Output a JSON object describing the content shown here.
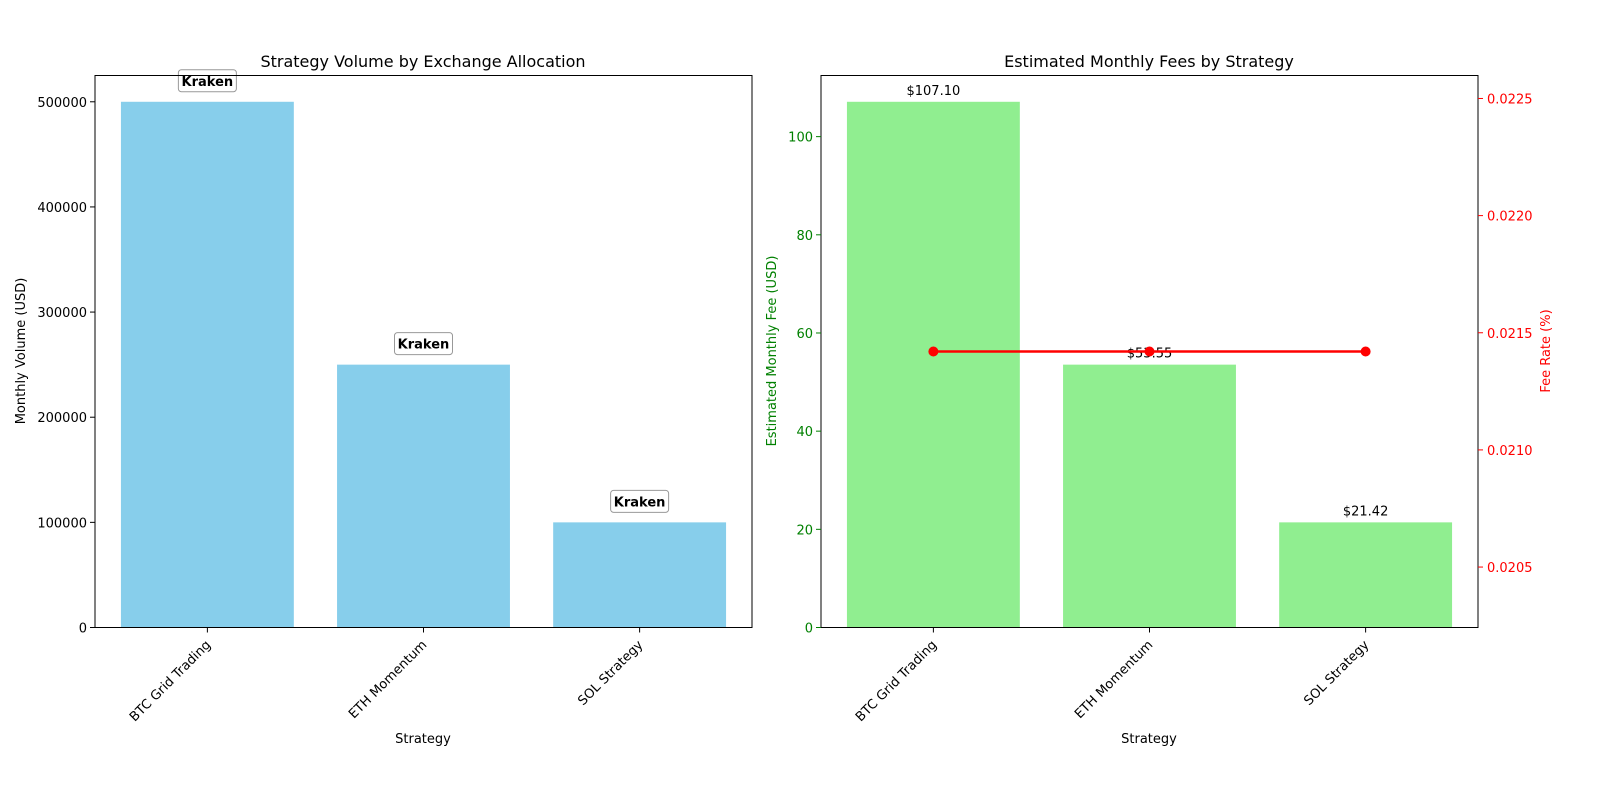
{
  "chart_data": [
    {
      "type": "bar",
      "title": "Strategy Volume by Exchange Allocation",
      "xlabel": "Strategy",
      "ylabel": "Monthly Volume (USD)",
      "categories": [
        "BTC Grid Trading",
        "ETH Momentum",
        "SOL Strategy"
      ],
      "values": [
        500000,
        250000,
        100000
      ],
      "bar_labels": [
        "Kraken",
        "Kraken",
        "Kraken"
      ],
      "ylim": [
        0,
        525000
      ],
      "yticks": [
        0,
        100000,
        200000,
        300000,
        400000,
        500000
      ],
      "ytick_labels": [
        "0",
        "100000",
        "200000",
        "300000",
        "400000",
        "500000"
      ],
      "bar_color": "#87ceeb",
      "grid": false
    },
    {
      "type": "bar",
      "title": "Estimated Monthly Fees by Strategy",
      "xlabel": "Strategy",
      "ylabel": "Estimated Monthly Fee (USD)",
      "ylabel_color": "#008000",
      "categories": [
        "BTC Grid Trading",
        "ETH Momentum",
        "SOL Strategy"
      ],
      "values": [
        107.1,
        53.55,
        21.42
      ],
      "value_labels": [
        "$107.10",
        "$53.55",
        "$21.42"
      ],
      "ylim": [
        0,
        112.455
      ],
      "yticks": [
        0,
        20,
        40,
        60,
        80,
        100
      ],
      "ytick_labels": [
        "0",
        "20",
        "40",
        "60",
        "80",
        "100"
      ],
      "bar_color": "#90ee90",
      "secondary_axis": {
        "type": "line",
        "ylabel": "Fee Rate (%)",
        "color": "#ff0000",
        "values": [
          0.02142,
          0.02142,
          0.02142
        ],
        "ylim": [
          0.020242,
          0.022598
        ],
        "yticks": [
          0.0205,
          0.021,
          0.0215,
          0.022,
          0.0225
        ],
        "ytick_labels": [
          "0.0205",
          "0.0210",
          "0.0215",
          "0.0220",
          "0.0225"
        ]
      },
      "grid": false
    }
  ]
}
